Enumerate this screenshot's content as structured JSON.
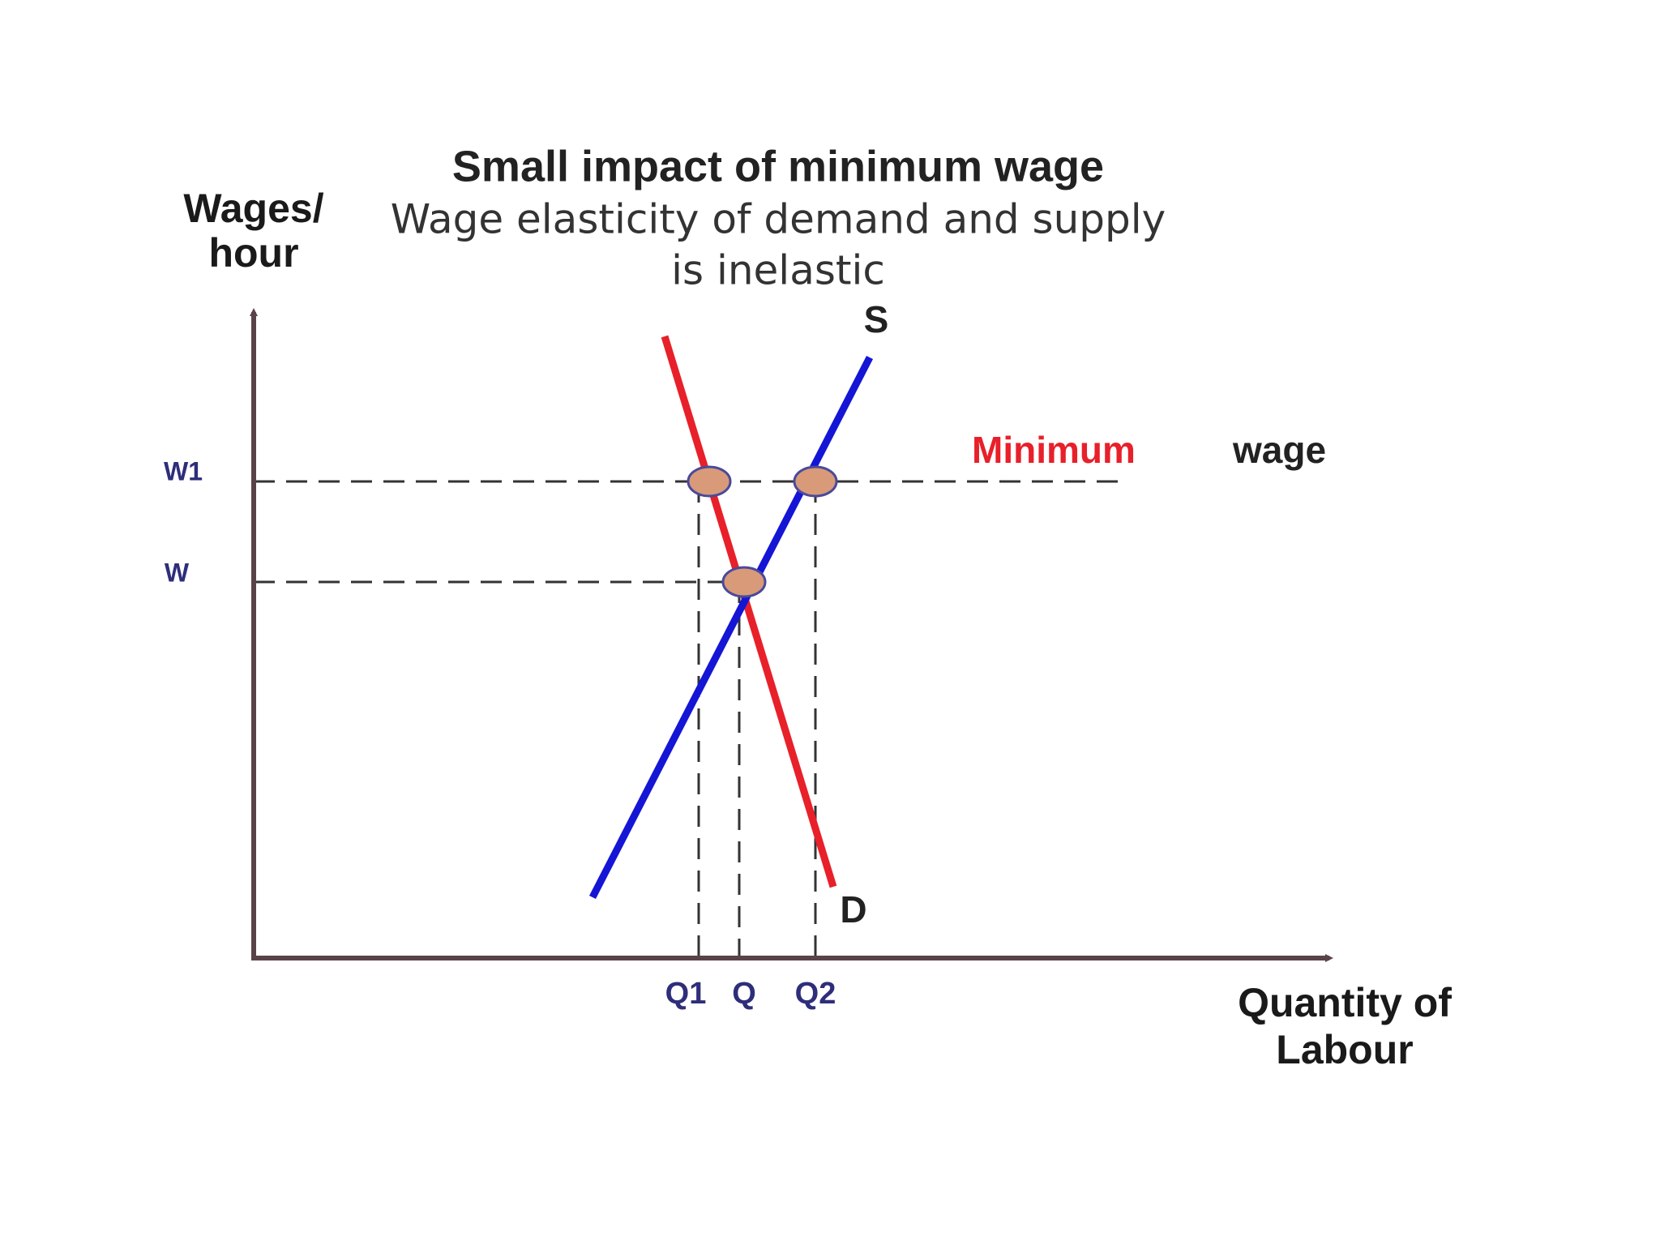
{
  "title": "Small impact of minimum wage",
  "subtitle_lines": [
    "Wage elasticity of demand and supply",
    "is inelastic"
  ],
  "y_axis_label_lines": [
    "Wages/",
    "hour"
  ],
  "x_axis_label_lines": [
    "Quantity of",
    "Labour"
  ],
  "y_labels": [
    "W1",
    "W"
  ],
  "x_labels": [
    "Q1",
    "Q",
    "Q2"
  ],
  "supply_label": "S",
  "demand_label": "D",
  "minimum_wage_label": [
    "Minimum",
    "wage"
  ]
}
